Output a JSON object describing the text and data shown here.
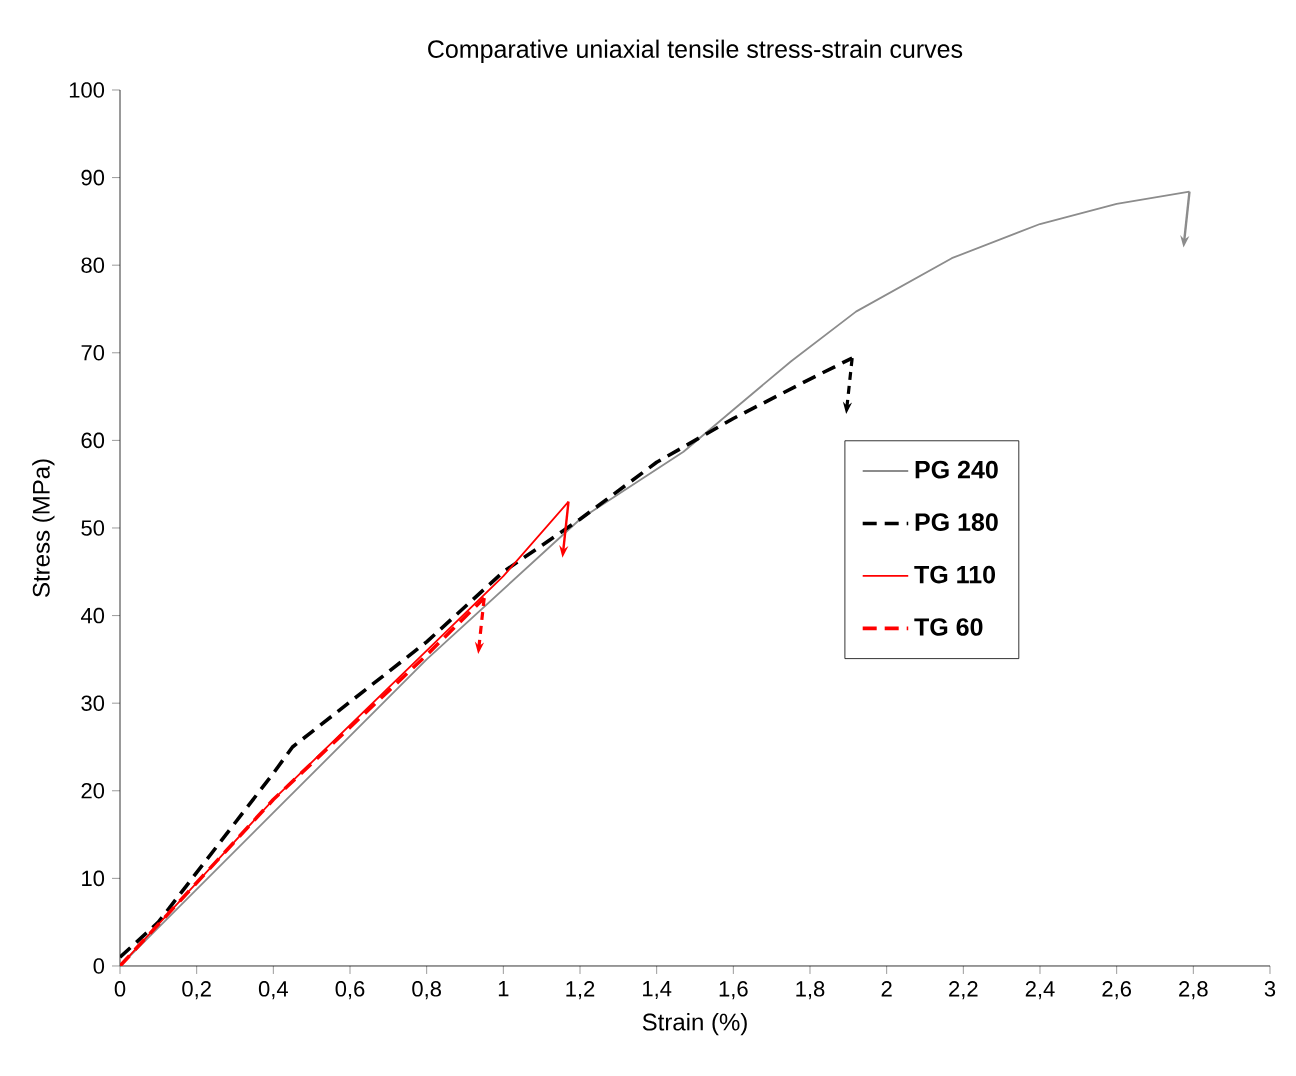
{
  "chart_data": {
    "type": "line",
    "title": "Comparative uniaxial tensile stress-strain curves",
    "xlabel": "Strain (%)",
    "ylabel": "Stress (MPa)",
    "xlim": [
      0,
      3
    ],
    "ylim": [
      0,
      100
    ],
    "xticks": [
      0,
      {
        "value": 0.2,
        "label": "0,2"
      },
      {
        "value": 0.4,
        "label": "0,4"
      },
      {
        "value": 0.6,
        "label": "0,6"
      },
      {
        "value": 0.8,
        "label": "0,8"
      },
      1,
      {
        "value": 1.2,
        "label": "1,2"
      },
      {
        "value": 1.4,
        "label": "1,4"
      },
      {
        "value": 1.6,
        "label": "1,6"
      },
      {
        "value": 1.8,
        "label": "1,8"
      },
      2,
      {
        "value": 2.2,
        "label": "2,2"
      },
      {
        "value": 2.4,
        "label": "2,4"
      },
      {
        "value": 2.6,
        "label": "2,6"
      },
      {
        "value": 2.8,
        "label": "2,8"
      },
      3
    ],
    "yticks": [
      0,
      10,
      20,
      30,
      40,
      50,
      60,
      70,
      80,
      90,
      100
    ],
    "grid": false,
    "legend": "right",
    "marker": "none",
    "series": [
      {
        "name": "PG 240",
        "color": "#8c8c8c",
        "line_style": "solid",
        "x": [
          0,
          0.4,
          0.8,
          1.2,
          1.47,
          1.6,
          1.75,
          1.92,
          2.17,
          2.4,
          2.6,
          2.79
        ],
        "values": [
          0,
          17.5,
          35,
          51,
          58.7,
          63.5,
          69,
          74.7,
          80.8,
          84.7,
          87,
          88.4
        ]
      },
      {
        "name": "PG 180",
        "color": "#000000",
        "line_style": "dashed",
        "x": [
          0,
          0.1,
          0.4,
          0.45,
          0.8,
          1.0,
          1.2,
          1.4,
          1.6,
          1.8,
          1.91
        ],
        "values": [
          1,
          5,
          22,
          25,
          37,
          45,
          51,
          57.5,
          62.5,
          67,
          69.4
        ]
      },
      {
        "name": "TG 110",
        "color": "#ff0000",
        "line_style": "solid",
        "x": [
          0,
          0.4,
          0.8,
          1.0,
          1.17
        ],
        "values": [
          0,
          19,
          36,
          44.5,
          53
        ]
      },
      {
        "name": "TG 60",
        "color": "#ff0000",
        "line_style": "dashed",
        "x": [
          0,
          0.4,
          0.8,
          0.95
        ],
        "values": [
          0,
          19,
          35.5,
          42
        ]
      }
    ]
  }
}
